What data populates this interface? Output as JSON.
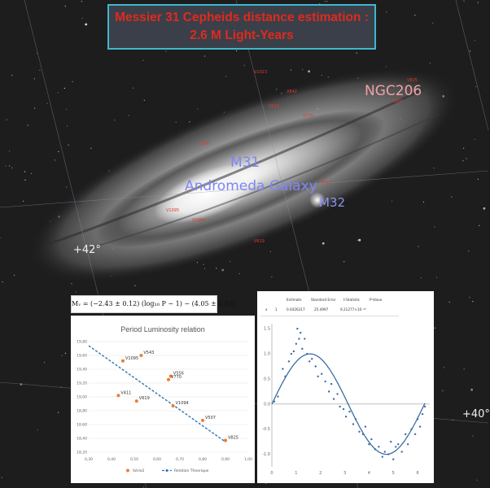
{
  "title": {
    "line1": "Messier 31 Cepheids distance estimation :",
    "line2": "2.6 M Light-Years",
    "color": "#e02a1d"
  },
  "sky_labels": {
    "m31": "M31",
    "andromeda": "Andromeda Galaxy",
    "m32": "M32",
    "ngc206": "NGC206",
    "dec_42": "+42°",
    "dec_40": "+40°"
  },
  "star_tags": [
    "V1095",
    "V1094",
    "V543",
    "V556",
    "V770",
    "V411",
    "V619",
    "V507",
    "V825",
    "V1023",
    "V842"
  ],
  "formula": "Mᵥ = (−2.43 ± 0.12) (log₁₀ P − 1) − (4.05 ± 0.02)",
  "fit_table": {
    "headers": [
      "Estimate",
      "Standard Error",
      "t-Statistic",
      "P-Value"
    ],
    "row": [
      "x",
      "1",
      "0.0426317",
      "25.4997",
      "9.21277×10⁻⁴⁸"
    ]
  },
  "chart_data": [
    {
      "type": "scatter",
      "title": "Period Luminosity relation",
      "xlim": [
        0.3,
        1.0
      ],
      "ylim": [
        18.2,
        19.8
      ],
      "x_ticks": [
        "0,30",
        "0,40",
        "0,50",
        "0,60",
        "0,70",
        "0,80",
        "0,90",
        "1,00"
      ],
      "y_ticks": [
        "18,20",
        "18,40",
        "18,60",
        "18,80",
        "19,00",
        "19,20",
        "19,40",
        "19,60",
        "19,80"
      ],
      "series": [
        {
          "name": "Série2",
          "color": "#ed7d31",
          "points": [
            {
              "label": "V543",
              "x": 0.53,
              "y": 19.6
            },
            {
              "label": "V1095",
              "x": 0.45,
              "y": 19.52
            },
            {
              "label": "V556",
              "x": 0.66,
              "y": 19.3
            },
            {
              "label": "V770",
              "x": 0.65,
              "y": 19.25
            },
            {
              "label": "V411",
              "x": 0.43,
              "y": 19.02
            },
            {
              "label": "V619",
              "x": 0.51,
              "y": 18.94
            },
            {
              "label": "V1094",
              "x": 0.67,
              "y": 18.87
            },
            {
              "label": "V507",
              "x": 0.8,
              "y": 18.66
            },
            {
              "label": "V825",
              "x": 0.9,
              "y": 18.37
            }
          ]
        },
        {
          "name": "Relation Theorique",
          "color": "#2e75b6",
          "line": [
            [
              0.3,
              19.74
            ],
            [
              0.9,
              18.35
            ]
          ]
        }
      ]
    },
    {
      "type": "scatter",
      "xlim": [
        0,
        6.5
      ],
      "ylim": [
        -1.25,
        1.6
      ],
      "x_ticks": [
        "0",
        "1",
        "2",
        "3",
        "4",
        "5",
        "6"
      ],
      "y_ticks": [
        "1.5",
        "1.0",
        "0.5",
        "0.0",
        "-0.5",
        "-1.0"
      ],
      "color": "#3b6ea5",
      "fit_curve": "sine",
      "points": [
        [
          0.1,
          0.05
        ],
        [
          0.25,
          0.15
        ],
        [
          0.45,
          0.7
        ],
        [
          0.55,
          0.55
        ],
        [
          0.7,
          0.85
        ],
        [
          0.8,
          1.0
        ],
        [
          0.9,
          1.05
        ],
        [
          1.0,
          1.2
        ],
        [
          1.05,
          1.5
        ],
        [
          1.12,
          1.3
        ],
        [
          1.18,
          1.42
        ],
        [
          1.25,
          1.1
        ],
        [
          1.35,
          1.3
        ],
        [
          1.45,
          1.0
        ],
        [
          1.55,
          0.85
        ],
        [
          1.65,
          0.9
        ],
        [
          1.8,
          0.75
        ],
        [
          1.9,
          0.55
        ],
        [
          2.05,
          0.6
        ],
        [
          2.2,
          0.45
        ],
        [
          2.35,
          0.25
        ],
        [
          2.45,
          0.4
        ],
        [
          2.55,
          0.1
        ],
        [
          2.7,
          0.2
        ],
        [
          2.8,
          -0.05
        ],
        [
          2.95,
          -0.1
        ],
        [
          3.05,
          -0.25
        ],
        [
          3.2,
          -0.15
        ],
        [
          3.35,
          -0.4
        ],
        [
          3.45,
          -0.3
        ],
        [
          3.6,
          -0.55
        ],
        [
          3.75,
          -0.6
        ],
        [
          3.85,
          -0.45
        ],
        [
          4.0,
          -0.8
        ],
        [
          4.1,
          -0.7
        ],
        [
          4.25,
          -0.9
        ],
        [
          4.4,
          -0.85
        ],
        [
          4.55,
          -1.05
        ],
        [
          4.65,
          -0.95
        ],
        [
          4.8,
          -1.0
        ],
        [
          4.9,
          -0.75
        ],
        [
          5.0,
          -1.1
        ],
        [
          5.1,
          -0.85
        ],
        [
          5.2,
          -0.8
        ],
        [
          5.35,
          -0.95
        ],
        [
          5.5,
          -0.6
        ],
        [
          5.6,
          -0.8
        ],
        [
          5.75,
          -0.5
        ],
        [
          5.9,
          -0.6
        ],
        [
          6.0,
          -0.3
        ],
        [
          6.1,
          -0.45
        ],
        [
          6.2,
          -0.2
        ],
        [
          6.3,
          -0.05
        ]
      ]
    }
  ]
}
